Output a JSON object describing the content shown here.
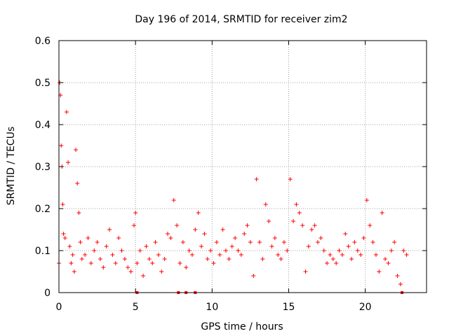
{
  "chart_data": {
    "type": "scatter",
    "title": "Day 196 of 2014, SRMTID for receiver zim2",
    "xlabel": "GPS time / hours",
    "ylabel": "SRMTID / TECUs",
    "xlim": [
      0,
      24
    ],
    "ylim": [
      0,
      0.6
    ],
    "xticks": [
      0,
      5,
      10,
      15,
      20
    ],
    "yticks": [
      0,
      0.1,
      0.2,
      0.3,
      0.4,
      0.5,
      0.6
    ],
    "xtick_labels": [
      "0",
      "5",
      "10",
      "15",
      "20"
    ],
    "ytick_labels": [
      "0",
      "0.1",
      "0.2",
      "0.3",
      "0.4",
      "0.5",
      "0.6"
    ],
    "grid": true,
    "marker": "plus",
    "color": "#ff0000",
    "series": [
      {
        "name": "SRMTID",
        "x": [
          0.0,
          0.05,
          0.1,
          0.15,
          0.2,
          0.25,
          0.3,
          0.4,
          0.5,
          0.6,
          0.7,
          0.8,
          0.9,
          1.0,
          1.1,
          1.2,
          1.3,
          1.4,
          1.5,
          1.7,
          1.9,
          2.1,
          2.3,
          2.5,
          2.7,
          2.9,
          3.1,
          3.3,
          3.5,
          3.7,
          3.9,
          4.1,
          4.3,
          4.5,
          4.7,
          4.9,
          5.0,
          5.1,
          5.3,
          5.5,
          5.7,
          5.9,
          6.1,
          6.3,
          6.5,
          6.7,
          6.9,
          7.1,
          7.3,
          7.5,
          7.7,
          7.9,
          8.1,
          8.3,
          8.5,
          8.7,
          8.9,
          9.1,
          9.3,
          9.5,
          9.7,
          9.9,
          10.1,
          10.3,
          10.5,
          10.7,
          10.9,
          11.1,
          11.3,
          11.5,
          11.7,
          11.9,
          12.1,
          12.3,
          12.5,
          12.7,
          12.9,
          13.1,
          13.3,
          13.5,
          13.7,
          13.9,
          14.1,
          14.3,
          14.5,
          14.7,
          14.9,
          15.1,
          15.3,
          15.5,
          15.7,
          15.9,
          16.1,
          16.3,
          16.5,
          16.7,
          16.9,
          17.1,
          17.3,
          17.5,
          17.7,
          17.9,
          18.1,
          18.3,
          18.5,
          18.7,
          18.9,
          19.1,
          19.3,
          19.5,
          19.7,
          19.9,
          20.1,
          20.3,
          20.5,
          20.7,
          20.9,
          21.1,
          21.3,
          21.5,
          21.7,
          21.9,
          22.1,
          22.3,
          22.5,
          22.7
        ],
        "y": [
          0.07,
          0.5,
          0.47,
          0.35,
          0.3,
          0.21,
          0.14,
          0.13,
          0.43,
          0.31,
          0.11,
          0.07,
          0.09,
          0.05,
          0.34,
          0.26,
          0.19,
          0.12,
          0.08,
          0.09,
          0.13,
          0.07,
          0.1,
          0.12,
          0.08,
          0.06,
          0.11,
          0.15,
          0.09,
          0.07,
          0.13,
          0.1,
          0.08,
          0.06,
          0.05,
          0.16,
          0.19,
          0.07,
          0.1,
          0.04,
          0.11,
          0.08,
          0.07,
          0.12,
          0.09,
          0.05,
          0.08,
          0.14,
          0.13,
          0.22,
          0.16,
          0.07,
          0.12,
          0.06,
          0.1,
          0.09,
          0.15,
          0.19,
          0.11,
          0.14,
          0.08,
          0.1,
          0.07,
          0.12,
          0.09,
          0.15,
          0.1,
          0.08,
          0.11,
          0.13,
          0.1,
          0.09,
          0.14,
          0.16,
          0.12,
          0.04,
          0.27,
          0.12,
          0.08,
          0.21,
          0.17,
          0.11,
          0.13,
          0.09,
          0.08,
          0.12,
          0.1,
          0.27,
          0.17,
          0.21,
          0.19,
          0.16,
          0.05,
          0.11,
          0.15,
          0.16,
          0.12,
          0.13,
          0.1,
          0.07,
          0.09,
          0.08,
          0.07,
          0.1,
          0.09,
          0.14,
          0.11,
          0.08,
          0.12,
          0.1,
          0.09,
          0.13,
          0.22,
          0.16,
          0.12,
          0.09,
          0.05,
          0.19,
          0.08,
          0.07,
          0.1,
          0.12,
          0.04,
          0.02,
          0.1,
          0.09
        ]
      }
    ],
    "axis_markers_at_zero": [
      5.1,
      7.8,
      8.3,
      8.9,
      22.4
    ]
  }
}
